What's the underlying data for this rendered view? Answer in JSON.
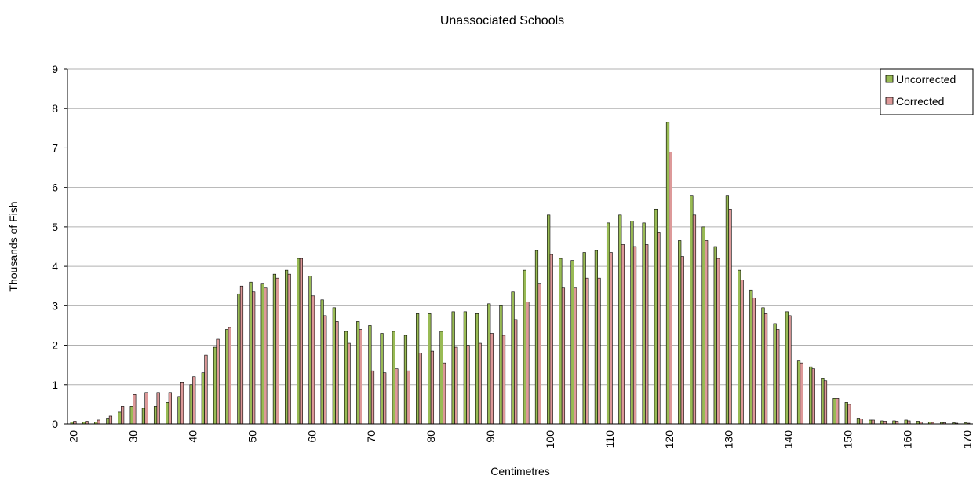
{
  "chart_data": {
    "type": "bar",
    "title": "Unassociated Schools",
    "xlabel": "Centimetres",
    "ylabel": "Thousands of Fish",
    "ylim": [
      0,
      9
    ],
    "yticks": [
      0,
      1,
      2,
      3,
      4,
      5,
      6,
      7,
      8,
      9
    ],
    "xticks": [
      20,
      30,
      40,
      50,
      60,
      70,
      80,
      90,
      100,
      110,
      120,
      130,
      140,
      150,
      160,
      170
    ],
    "x": [
      20,
      22,
      24,
      26,
      28,
      30,
      32,
      34,
      36,
      38,
      40,
      42,
      44,
      46,
      48,
      50,
      52,
      54,
      56,
      58,
      60,
      62,
      64,
      66,
      68,
      70,
      72,
      74,
      76,
      78,
      80,
      82,
      84,
      86,
      88,
      90,
      92,
      94,
      96,
      98,
      100,
      102,
      104,
      106,
      108,
      110,
      112,
      114,
      116,
      118,
      120,
      122,
      124,
      126,
      128,
      130,
      132,
      134,
      136,
      138,
      140,
      142,
      144,
      146,
      148,
      150,
      152,
      154,
      156,
      158,
      160,
      162,
      164,
      166,
      168,
      170
    ],
    "grid": "horizontal",
    "legend_position": "top-right",
    "series": [
      {
        "name": "Uncorrected",
        "color": "#99bb55",
        "values": [
          0.05,
          0.05,
          0.05,
          0.15,
          0.3,
          0.45,
          0.4,
          0.45,
          0.55,
          0.7,
          1.0,
          1.3,
          1.95,
          2.4,
          3.3,
          3.6,
          3.55,
          3.8,
          3.9,
          4.2,
          3.75,
          3.15,
          2.95,
          2.35,
          2.6,
          2.5,
          2.3,
          2.35,
          2.25,
          2.8,
          2.8,
          2.35,
          2.85,
          2.85,
          2.8,
          3.05,
          3.0,
          3.35,
          3.9,
          4.4,
          5.3,
          4.2,
          4.15,
          4.35,
          4.4,
          5.1,
          5.3,
          5.15,
          5.1,
          5.45,
          7.65,
          4.65,
          5.8,
          5.0,
          4.5,
          5.8,
          3.9,
          3.4,
          2.95,
          2.55,
          2.85,
          1.6,
          1.45,
          1.15,
          0.65,
          0.55,
          0.15,
          0.1,
          0.08,
          0.08,
          0.1,
          0.07,
          0.05,
          0.04,
          0.03,
          0.03
        ]
      },
      {
        "name": "Corrected",
        "color": "#dd9999",
        "values": [
          0.07,
          0.07,
          0.1,
          0.2,
          0.45,
          0.75,
          0.8,
          0.8,
          0.8,
          1.05,
          1.2,
          1.75,
          2.15,
          2.45,
          3.5,
          3.35,
          3.45,
          3.7,
          3.8,
          4.2,
          3.25,
          2.75,
          2.6,
          2.05,
          2.4,
          1.35,
          1.3,
          1.4,
          1.35,
          1.8,
          1.85,
          1.55,
          1.95,
          2.0,
          2.05,
          2.3,
          2.25,
          2.65,
          3.1,
          3.55,
          4.3,
          3.45,
          3.45,
          3.7,
          3.7,
          4.35,
          4.55,
          4.5,
          4.55,
          4.85,
          6.9,
          4.25,
          5.3,
          4.65,
          4.2,
          5.45,
          3.65,
          3.2,
          2.8,
          2.4,
          2.75,
          1.55,
          1.4,
          1.1,
          0.65,
          0.5,
          0.13,
          0.1,
          0.07,
          0.07,
          0.08,
          0.05,
          0.04,
          0.03,
          0.02,
          0.02
        ]
      }
    ]
  }
}
